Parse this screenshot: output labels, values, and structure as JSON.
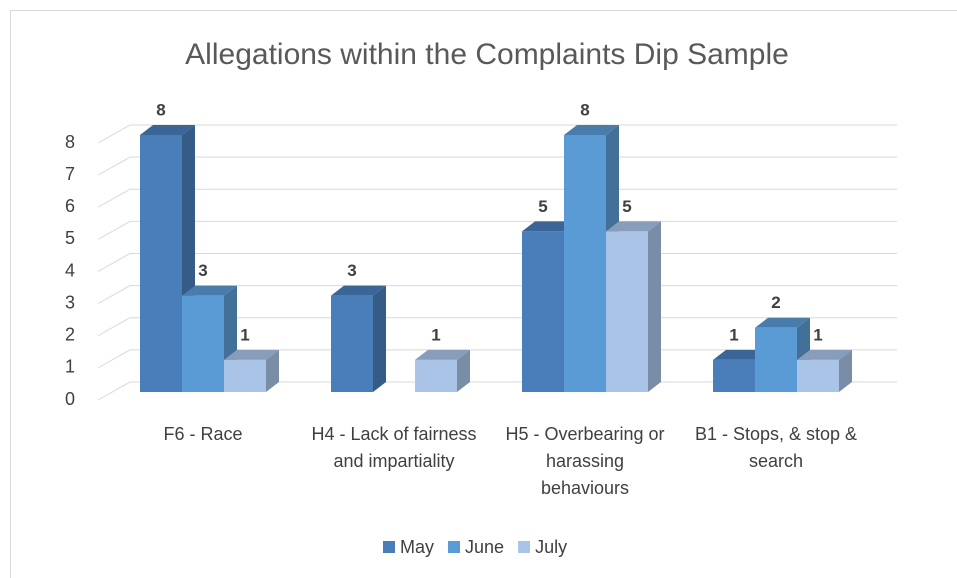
{
  "chart_data": {
    "type": "bar3d",
    "title": "Allegations within the Complaints Dip Sample",
    "categories": [
      "F6 - Race",
      "H4 - Lack of fairness and impartiality",
      "H5 - Overbearing or harassing behaviours",
      "B1 - Stops, & stop & search"
    ],
    "series": [
      {
        "name": "May",
        "color": "#4a7ebb",
        "values": [
          8,
          3,
          5,
          1
        ]
      },
      {
        "name": "June",
        "color": "#5b9bd5",
        "values": [
          3,
          null,
          8,
          2
        ]
      },
      {
        "name": "July",
        "color": "#a9c4e7",
        "values": [
          1,
          1,
          5,
          1
        ]
      }
    ],
    "ylim": [
      0,
      8
    ],
    "yticks": [
      0,
      1,
      2,
      3,
      4,
      5,
      6,
      7,
      8
    ],
    "grid": true,
    "legend": "bottom"
  }
}
